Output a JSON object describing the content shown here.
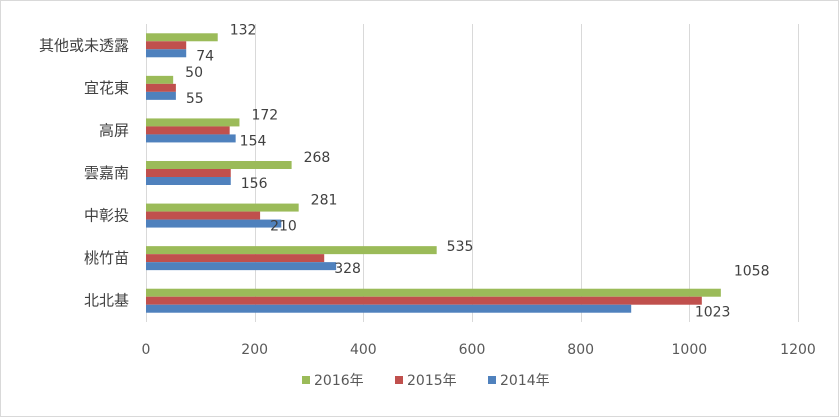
{
  "chart_data": {
    "type": "bar",
    "orientation": "horizontal",
    "title": "",
    "xlabel": "",
    "ylabel": "",
    "xlim": [
      0,
      1200
    ],
    "x_ticks": [
      0,
      200,
      400,
      600,
      800,
      1000,
      1200
    ],
    "grid": "vertical",
    "legend_position": "bottom",
    "categories": [
      "其他或未透露",
      "宜花東",
      "高屏",
      "雲嘉南",
      "中彰投",
      "桃竹苗",
      "北北基"
    ],
    "series": [
      {
        "name": "2016年",
        "color": "#9bbb59",
        "values": [
          132,
          50,
          172,
          268,
          281,
          535,
          1058
        ]
      },
      {
        "name": "2015年",
        "color": "#c0504d",
        "values": [
          74,
          55,
          154,
          156,
          210,
          328,
          1023
        ]
      },
      {
        "name": "2014年",
        "color": "#4f81bd",
        "values": [
          74,
          55,
          165,
          156,
          249,
          350,
          893
        ]
      }
    ],
    "data_labels": [
      {
        "series": "2016年",
        "category": "其他或未透露",
        "text": "132"
      },
      {
        "series": "2015年",
        "category": "其他或未透露",
        "text": "74"
      },
      {
        "series": "2016年",
        "category": "宜花東",
        "text": "50"
      },
      {
        "series": "2015年",
        "category": "宜花東",
        "text": "55"
      },
      {
        "series": "2016年",
        "category": "高屏",
        "text": "172"
      },
      {
        "series": "2015年",
        "category": "高屏",
        "text": "154"
      },
      {
        "series": "2016年",
        "category": "雲嘉南",
        "text": "268"
      },
      {
        "series": "2015年",
        "category": "雲嘉南",
        "text": "156"
      },
      {
        "series": "2016年",
        "category": "中彰投",
        "text": "281"
      },
      {
        "series": "2015年",
        "category": "中彰投",
        "text": "210"
      },
      {
        "series": "2016年",
        "category": "桃竹苗",
        "text": "535"
      },
      {
        "series": "2015年",
        "category": "桃竹苗",
        "text": "328"
      },
      {
        "series": "2016年",
        "category": "北北基",
        "text": "1058"
      },
      {
        "series": "2015年",
        "category": "北北基",
        "text": "1023"
      }
    ]
  }
}
